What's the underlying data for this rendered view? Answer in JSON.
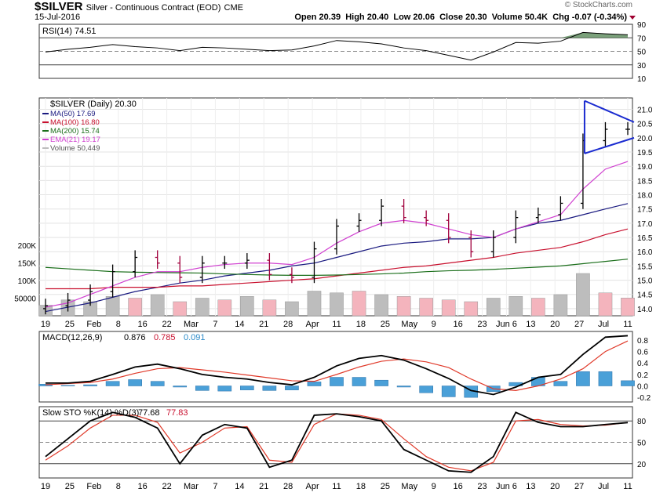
{
  "header": {
    "symbol": "$SILVER",
    "description": "Silver - Continuous Contract (EOD)",
    "exchange": "CME",
    "date": "15-Jul-2016",
    "brand": "© StockCharts.com",
    "open_label": "Open",
    "open": "20.39",
    "high_label": "High",
    "high": "20.40",
    "low_label": "Low",
    "low": "20.06",
    "close_label": "Close",
    "close": "20.30",
    "volume_label": "Volume",
    "volume": "50.4K",
    "chg_label": "Chg",
    "chg": "-0.07 (-0.34%)"
  },
  "colors": {
    "ma50": "#1a1a80",
    "ma100": "#c8102e",
    "ma200": "#1a6e1a",
    "ema21": "#d040d0",
    "up_bar": "#000000",
    "down_bar": "#a0003c",
    "vol_up": "#bdbdbd",
    "vol_down": "#f4b4bd",
    "macd_hist": "#4aa0d8",
    "rsi_fill": "#5a8a5a",
    "triangle": "#1a2bd0"
  },
  "chart_data": [
    {
      "type": "line",
      "panel": "RSI",
      "label": "RSI(14) 74.51",
      "ylim": [
        10,
        90
      ],
      "y_ticks": [
        10,
        30,
        50,
        70,
        90
      ],
      "ref_lines": [
        30,
        70
      ],
      "x": [
        "Jan 19",
        "Jan 25",
        "Feb 1",
        "Feb 8",
        "Feb 16",
        "Feb 22",
        "Mar 1",
        "Mar 7",
        "Mar 14",
        "Mar 21",
        "Mar 28",
        "Apr 4",
        "Apr 11",
        "Apr 18",
        "Apr 25",
        "May 2",
        "May 9",
        "May 16",
        "May 23",
        "Jun 1",
        "Jun 6",
        "Jun 13",
        "Jun 20",
        "Jun 27",
        "Jul 5",
        "Jul 11",
        "Jul 15"
      ],
      "values": [
        49,
        53,
        56,
        60,
        57,
        55,
        51,
        56,
        55,
        53,
        51,
        52,
        58,
        66,
        64,
        61,
        55,
        51,
        44,
        37,
        49,
        63,
        62,
        65,
        78,
        76,
        74.51
      ]
    },
    {
      "type": "bar",
      "panel": "price",
      "title": "$SILVER (Daily) 20.30",
      "ylim": [
        13.75,
        21.4
      ],
      "y_ticks": [
        14.0,
        14.5,
        15.0,
        15.5,
        16.0,
        16.5,
        17.0,
        17.5,
        18.0,
        18.5,
        19.0,
        19.5,
        20.0,
        20.5,
        21.0
      ],
      "x_tick_labels": [
        "19",
        "25",
        "Feb",
        "8",
        "16",
        "22",
        "Mar",
        "7",
        "14",
        "21",
        "28",
        "Apr",
        "11",
        "18",
        "25",
        "May",
        "9",
        "16",
        "23",
        "Jun 6",
        "13",
        "20",
        "27",
        "Jul",
        "11"
      ],
      "x": [
        "Jan 19",
        "Jan 25",
        "Feb 1",
        "Feb 8",
        "Feb 16",
        "Feb 22",
        "Mar 1",
        "Mar 7",
        "Mar 14",
        "Mar 21",
        "Mar 28",
        "Apr 4",
        "Apr 11",
        "Apr 18",
        "Apr 25",
        "May 2",
        "May 9",
        "May 16",
        "May 23",
        "Jun 1",
        "Jun 6",
        "Jun 13",
        "Jun 20",
        "Jun 27",
        "Jul 5",
        "Jul 11",
        "Jul 15"
      ],
      "close": [
        14.1,
        14.3,
        14.6,
        15.3,
        15.8,
        15.6,
        15.1,
        15.6,
        15.6,
        15.7,
        15.2,
        15.1,
        16.1,
        16.9,
        17.1,
        17.6,
        17.2,
        17.1,
        16.5,
        16.0,
        16.5,
        17.2,
        17.3,
        17.7,
        19.9,
        20.3,
        20.3
      ],
      "legend": [
        {
          "name": "MA(50) 17.69",
          "color_key": "ma50"
        },
        {
          "name": "MA(100) 16.80",
          "color_key": "ma100"
        },
        {
          "name": "MA(200) 15.74",
          "color_key": "ma200"
        },
        {
          "name": "EMA(21) 19.17",
          "color_key": "ema21"
        },
        {
          "name": "Volume 50,449",
          "color_key": "vol_up"
        }
      ],
      "series": [
        {
          "name": "MA(50) 17.69",
          "values": [
            13.9,
            14.05,
            14.2,
            14.4,
            14.6,
            14.75,
            14.9,
            15.0,
            15.15,
            15.25,
            15.35,
            15.5,
            15.6,
            15.8,
            16.0,
            16.2,
            16.3,
            16.35,
            16.45,
            16.45,
            16.5,
            16.8,
            17.0,
            17.1,
            17.3,
            17.5,
            17.69
          ]
        },
        {
          "name": "MA(100) 16.80",
          "values": [
            14.7,
            14.7,
            14.7,
            14.75,
            14.75,
            14.75,
            14.8,
            14.8,
            14.85,
            14.9,
            14.95,
            15.0,
            15.05,
            15.15,
            15.25,
            15.35,
            15.45,
            15.5,
            15.6,
            15.7,
            15.8,
            15.95,
            16.05,
            16.15,
            16.35,
            16.6,
            16.8
          ]
        },
        {
          "name": "MA(200) 15.74",
          "values": [
            15.45,
            15.4,
            15.35,
            15.3,
            15.28,
            15.27,
            15.26,
            15.25,
            15.22,
            15.2,
            15.18,
            15.17,
            15.17,
            15.18,
            15.2,
            15.22,
            15.25,
            15.3,
            15.33,
            15.35,
            15.38,
            15.42,
            15.46,
            15.5,
            15.58,
            15.66,
            15.74
          ]
        },
        {
          "name": "EMA(21) 19.17",
          "values": [
            14.05,
            14.2,
            14.5,
            14.8,
            15.1,
            15.3,
            15.3,
            15.45,
            15.55,
            15.6,
            15.6,
            15.55,
            15.8,
            16.3,
            16.7,
            17.0,
            17.1,
            17.0,
            16.8,
            16.6,
            16.5,
            16.8,
            17.05,
            17.3,
            18.2,
            18.9,
            19.17
          ]
        }
      ],
      "volume_ylim": [
        0,
        200000
      ],
      "volume_ticks": [
        "200K",
        "150K",
        "100K",
        "50000"
      ],
      "volume": [
        30000,
        45000,
        40000,
        55000,
        50000,
        60000,
        40000,
        50000,
        45000,
        55000,
        45000,
        40000,
        70000,
        65000,
        70000,
        60000,
        55000,
        50000,
        45000,
        40000,
        50000,
        55000,
        50000,
        60000,
        120000,
        65000,
        50449
      ],
      "volume_up": [
        true,
        true,
        true,
        true,
        false,
        true,
        false,
        true,
        false,
        true,
        false,
        true,
        true,
        true,
        false,
        true,
        false,
        false,
        false,
        false,
        true,
        true,
        false,
        true,
        true,
        false,
        false
      ],
      "annotation": "symmetrical triangle: upper line 21.3 → 20.55, lower line 19.45 → 20.0 (Jul 1 – Jul 15)"
    },
    {
      "type": "line",
      "panel": "MACD",
      "label_prefix": "MACD(12,26,9)",
      "label_macd": "0.876",
      "label_signal": "0.785",
      "label_hist": "0.091",
      "ylim": [
        -0.28,
        0.95
      ],
      "y_ticks": [
        -0.2,
        0.0,
        0.2,
        0.4,
        0.6,
        0.8
      ],
      "x": [
        "Jan 19",
        "Jan 25",
        "Feb 1",
        "Feb 8",
        "Feb 16",
        "Feb 22",
        "Mar 1",
        "Mar 7",
        "Mar 14",
        "Mar 21",
        "Mar 28",
        "Apr 4",
        "Apr 11",
        "Apr 18",
        "Apr 25",
        "May 2",
        "May 9",
        "May 16",
        "May 23",
        "Jun 1",
        "Jun 6",
        "Jun 13",
        "Jun 20",
        "Jun 27",
        "Jul 5",
        "Jul 11",
        "Jul 15"
      ],
      "series": [
        {
          "name": "MACD",
          "values": [
            0.05,
            0.05,
            0.08,
            0.2,
            0.33,
            0.38,
            0.3,
            0.2,
            0.15,
            0.12,
            0.06,
            0.02,
            0.15,
            0.35,
            0.48,
            0.53,
            0.45,
            0.3,
            0.13,
            -0.08,
            -0.15,
            -0.02,
            0.15,
            0.2,
            0.55,
            0.85,
            0.876
          ]
        },
        {
          "name": "Signal",
          "values": [
            0.02,
            0.04,
            0.06,
            0.12,
            0.22,
            0.3,
            0.32,
            0.28,
            0.24,
            0.19,
            0.14,
            0.09,
            0.08,
            0.2,
            0.33,
            0.43,
            0.47,
            0.42,
            0.32,
            0.12,
            -0.05,
            -0.08,
            0.0,
            0.12,
            0.3,
            0.6,
            0.785
          ]
        },
        {
          "name": "Histogram",
          "values": [
            0.03,
            0.01,
            0.02,
            0.08,
            0.11,
            0.08,
            -0.02,
            -0.08,
            -0.09,
            -0.07,
            -0.08,
            -0.07,
            0.07,
            0.15,
            0.15,
            0.1,
            -0.02,
            -0.12,
            -0.19,
            -0.2,
            -0.1,
            0.06,
            0.15,
            0.08,
            0.25,
            0.25,
            0.091
          ]
        }
      ]
    },
    {
      "type": "line",
      "panel": "STO",
      "label_prefix": "Slow STO %K(14) %D(3)",
      "label_k": "77.68",
      "label_d": "77.83",
      "ylim": [
        0,
        100
      ],
      "y_ticks": [
        20,
        50,
        80
      ],
      "ref_lines": [
        20,
        50,
        80
      ],
      "x_tick_labels": [
        "19",
        "25",
        "Feb",
        "8",
        "16",
        "22",
        "Mar",
        "7",
        "14",
        "21",
        "28",
        "Apr",
        "11",
        "18",
        "25",
        "May",
        "9",
        "16",
        "23",
        "Jun 6",
        "13",
        "20",
        "27",
        "Jul",
        "11"
      ],
      "x": [
        "Jan 19",
        "Jan 25",
        "Feb 1",
        "Feb 8",
        "Feb 16",
        "Feb 22",
        "Mar 1",
        "Mar 7",
        "Mar 14",
        "Mar 21",
        "Mar 28",
        "Apr 4",
        "Apr 11",
        "Apr 18",
        "Apr 25",
        "May 2",
        "May 9",
        "May 16",
        "May 23",
        "Jun 1",
        "Jun 6",
        "Jun 13",
        "Jun 20",
        "Jun 27",
        "Jul 5",
        "Jul 11",
        "Jul 15"
      ],
      "series": [
        {
          "name": "%K",
          "values": [
            30,
            55,
            80,
            92,
            85,
            70,
            20,
            60,
            75,
            70,
            15,
            25,
            88,
            90,
            86,
            80,
            40,
            25,
            10,
            8,
            30,
            92,
            78,
            72,
            72,
            75,
            77.68
          ]
        },
        {
          "name": "%D",
          "values": [
            25,
            45,
            70,
            88,
            88,
            78,
            35,
            50,
            70,
            72,
            25,
            22,
            75,
            90,
            88,
            82,
            55,
            30,
            15,
            10,
            22,
            80,
            82,
            75,
            73,
            74,
            77.83
          ]
        }
      ]
    }
  ]
}
